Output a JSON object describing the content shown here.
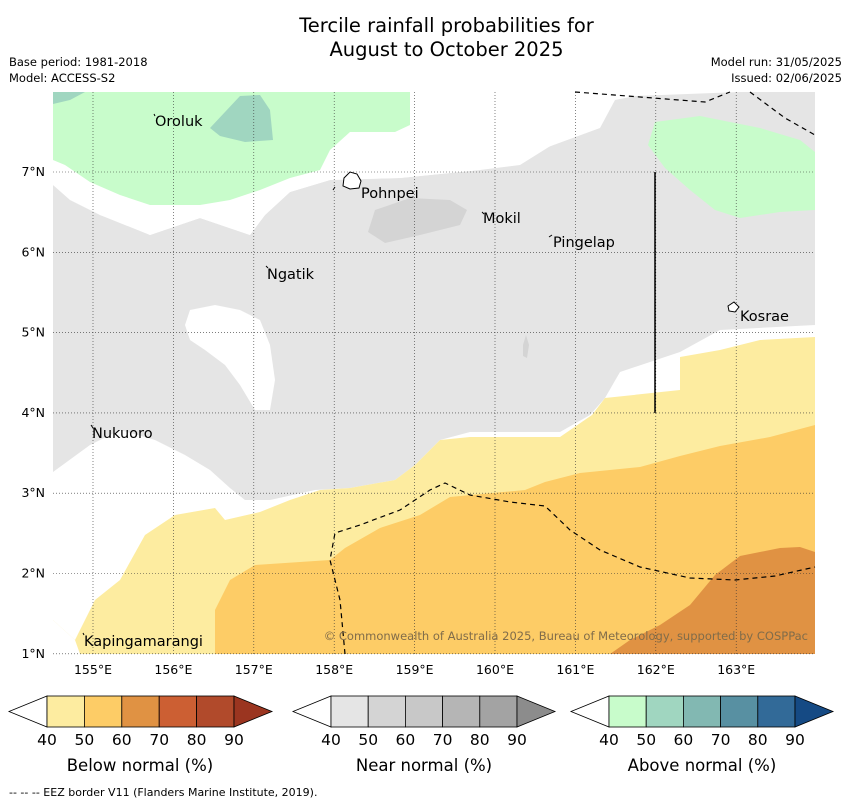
{
  "title_line1": "Tercile rainfall probabilities for",
  "title_line2": "August to October 2025",
  "base_period": "Base period: 1981-2018",
  "model": "Model: ACCESS-S2",
  "model_run": "Model run: 31/05/2025",
  "issued": "Issued: 02/06/2025",
  "map": {
    "lon_ticks": [
      "155°E",
      "156°E",
      "157°E",
      "158°E",
      "159°E",
      "160°E",
      "161°E",
      "162°E",
      "163°E"
    ],
    "lat_ticks": [
      "7°N",
      "6°N",
      "5°N",
      "4°N",
      "3°N",
      "2°N",
      "1°N"
    ],
    "places": [
      "Oroluk",
      "Pohnpei",
      "Mokil",
      "Pingelap",
      "Ngatik",
      "Kosrae",
      "Nukuoro",
      "Kapingamarangi"
    ],
    "copyright": "© Commonwealth of Australia 2025, Bureau of Meteorology, supported by COSPPac",
    "colors": {
      "below_40_50": "#fdeca0",
      "below_50_60": "#fdcc66",
      "below_60_70": "#e09243",
      "near": "#e5e5e5",
      "near_darker": "#d4d4d4",
      "above_40_50": "#c8fccb",
      "above_50_60": "#a0d6c0"
    }
  },
  "colorbars": [
    {
      "label": "Below normal (%)",
      "ticks": [
        "40",
        "50",
        "60",
        "70",
        "80",
        "90"
      ],
      "colors": [
        "#fdeca0",
        "#fdcc66",
        "#e09243",
        "#cc5f33",
        "#b14a2b",
        "#9b3520"
      ]
    },
    {
      "label": "Near normal (%)",
      "ticks": [
        "40",
        "50",
        "60",
        "70",
        "80",
        "90"
      ],
      "colors": [
        "#e5e5e5",
        "#d4d4d4",
        "#c8c8c8",
        "#b5b5b5",
        "#a3a3a3",
        "#8c8c8c"
      ]
    },
    {
      "label": "Above normal (%)",
      "ticks": [
        "40",
        "50",
        "60",
        "70",
        "80",
        "90"
      ],
      "colors": [
        "#c8fccb",
        "#a0d6c0",
        "#82b8b2",
        "#5890a2",
        "#326a98",
        "#154a84"
      ]
    }
  ],
  "footnote": "--  --  -- EEZ border V11 (Flanders Marine Institute, 2019)."
}
